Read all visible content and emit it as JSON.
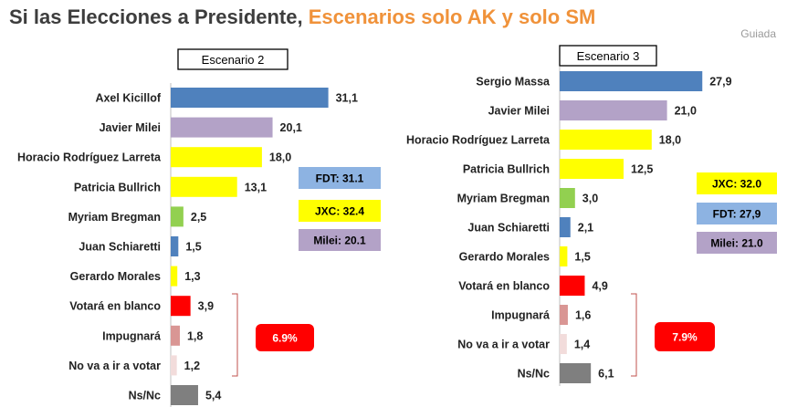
{
  "header": {
    "title_part1": "Si las Elecciones a Presidente, ",
    "title_part2": "Escenarios solo AK y solo SM",
    "brand": "Guiada"
  },
  "chart_data": [
    {
      "type": "bar",
      "orientation": "horizontal",
      "title": "Escenario 2",
      "categories": [
        "Axel Kicillof",
        "Javier Milei",
        "Horacio Rodríguez Larreta",
        "Patricia Bullrich",
        "Myriam Bregman",
        "Juan Schiaretti",
        "Gerardo Morales",
        "Votará en blanco",
        "Impugnará",
        "No va a ir a votar",
        "Ns/Nc"
      ],
      "values": [
        31.1,
        20.1,
        18.0,
        13.1,
        2.5,
        1.5,
        1.3,
        3.9,
        1.8,
        1.2,
        5.4
      ],
      "value_labels": [
        "31,1",
        "20,1",
        "18,0",
        "13,1",
        "2,5",
        "1,5",
        "1,3",
        "3,9",
        "1,8",
        "1,2",
        "5,4"
      ],
      "colors": [
        "#4f81bd",
        "#b3a2c7",
        "#ffff00",
        "#ffff00",
        "#92d050",
        "#4f81bd",
        "#ffff00",
        "#ff0000",
        "#d99694",
        "#f2dcdb",
        "#7f7f7f"
      ],
      "totals": [
        {
          "label": "FDT: 31.1",
          "color": "#8db3e2"
        },
        {
          "label": "JXC: 32.4",
          "color": "#ffff00"
        },
        {
          "label": "Milei: 20.1",
          "color": "#b3a2c7"
        }
      ],
      "bracket_total": {
        "label": "6.9%",
        "color": "#ff0000"
      }
    },
    {
      "type": "bar",
      "orientation": "horizontal",
      "title": "Escenario 3",
      "categories": [
        "Sergio Massa",
        "Javier Milei",
        "Horacio Rodríguez Larreta",
        "Patricia Bullrich",
        "Myriam Bregman",
        "Juan Schiaretti",
        "Gerardo Morales",
        "Votará en blanco",
        "Impugnará",
        "No va a ir a votar",
        "Ns/Nc"
      ],
      "values": [
        27.9,
        21.0,
        18.0,
        12.5,
        3.0,
        2.1,
        1.5,
        4.9,
        1.6,
        1.4,
        6.1
      ],
      "value_labels": [
        "27,9",
        "21,0",
        "18,0",
        "12,5",
        "3,0",
        "2,1",
        "1,5",
        "4,9",
        "1,6",
        "1,4",
        "6,1"
      ],
      "colors": [
        "#4f81bd",
        "#b3a2c7",
        "#ffff00",
        "#ffff00",
        "#92d050",
        "#4f81bd",
        "#ffff00",
        "#ff0000",
        "#d99694",
        "#f2dcdb",
        "#7f7f7f"
      ],
      "totals": [
        {
          "label": "JXC: 32.0",
          "color": "#ffff00"
        },
        {
          "label": "FDT: 27,9",
          "color": "#8db3e2"
        },
        {
          "label": "Milei: 21.0",
          "color": "#b3a2c7"
        }
      ],
      "bracket_total": {
        "label": "7.9%",
        "color": "#ff0000"
      }
    }
  ]
}
